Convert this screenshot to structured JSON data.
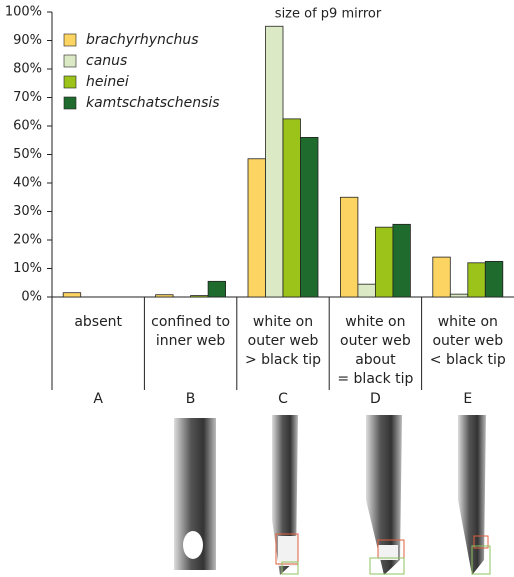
{
  "chart_data": {
    "type": "bar",
    "title": "size of p9 mirror",
    "categories": [
      [
        "absent"
      ],
      [
        "confined to",
        "inner web"
      ],
      [
        "white on",
        "outer web",
        "> black tip"
      ],
      [
        "white on",
        "outer web",
        "about",
        "= black tip"
      ],
      [
        "white on",
        "outer web",
        "< black tip"
      ]
    ],
    "category_letters": [
      "A",
      "B",
      "C",
      "D",
      "E"
    ],
    "series": [
      {
        "name": "brachyrhynchus",
        "color": "#fcd462",
        "values": [
          1.5,
          0.8,
          48.5,
          35,
          14
        ]
      },
      {
        "name": "canus",
        "color": "#dbe9c4",
        "values": [
          0,
          0,
          95,
          4.5,
          1
        ]
      },
      {
        "name": "heinei",
        "color": "#9cc31a",
        "values": [
          0,
          0.5,
          62.5,
          24.5,
          12
        ]
      },
      {
        "name": "kamtschatschensis",
        "color": "#1f6b2e",
        "values": [
          0,
          5.5,
          56,
          25.5,
          12.5
        ]
      }
    ],
    "ylim": [
      0,
      100
    ],
    "yticks": [
      {
        "value": 0,
        "label": "0%"
      },
      {
        "value": 10,
        "label": "10%"
      },
      {
        "value": 20,
        "label": "20%"
      },
      {
        "value": 30,
        "label": "30%"
      },
      {
        "value": 40,
        "label": "40%"
      },
      {
        "value": 50,
        "label": "50%"
      },
      {
        "value": 60,
        "label": "60%"
      },
      {
        "value": 70,
        "label": "70%"
      },
      {
        "value": 80,
        "label": "80%"
      },
      {
        "value": 90,
        "label": "90%"
      },
      {
        "value": 100,
        "label": "100%"
      }
    ],
    "legend": "upper left"
  }
}
